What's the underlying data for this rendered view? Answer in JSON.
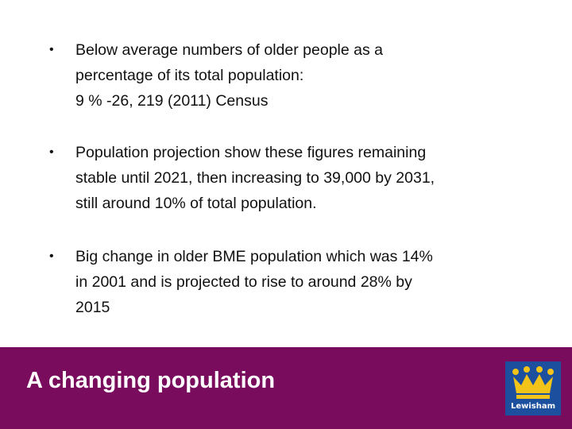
{
  "bullets": [
    {
      "lines": [
        "Below average numbers of older people as a",
        "percentage of its total population:",
        "9 % -26, 219 (2011) Census"
      ]
    },
    {
      "lines": [
        "Population projection show these figures remaining",
        "stable until 2021, then increasing to 39,000 by 2031,",
        "still around 10% of total population."
      ]
    },
    {
      "lines": [
        "Big change in older BME population which was 14%",
        "in 2001 and is projected to rise to around 28% by",
        "2015"
      ]
    }
  ],
  "footer": {
    "title": "A changing population",
    "logo_text": "Lewisham"
  }
}
